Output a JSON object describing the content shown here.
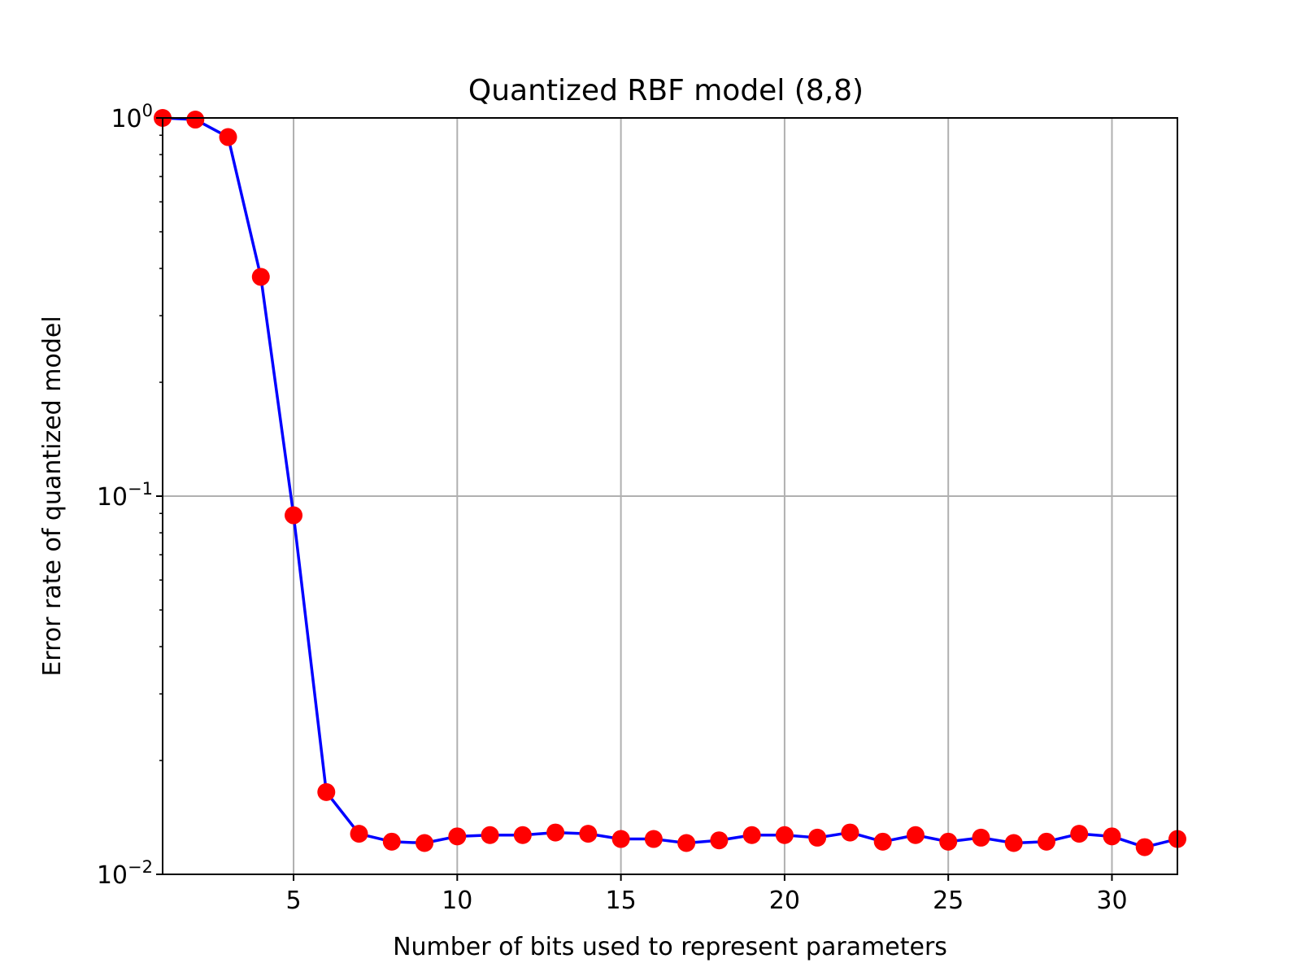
{
  "chart_data": {
    "type": "line",
    "title": "Quantized RBF model (8,8)",
    "xlabel": "Number of bits used to represent parameters",
    "ylabel": "Error rate of quantized model",
    "xlim": [
      1,
      32
    ],
    "ylim": [
      0.01,
      1
    ],
    "yscale": "log",
    "grid": true,
    "x_ticks": [
      5,
      10,
      15,
      20,
      25,
      30
    ],
    "y_ticks": [
      {
        "value": 1,
        "base": "10",
        "exp": "0"
      },
      {
        "value": 0.1,
        "base": "10",
        "exp": "−1"
      },
      {
        "value": 0.01,
        "base": "10",
        "exp": "−2"
      }
    ],
    "line_color": "#0000ff",
    "marker_color": "#ff0000",
    "series": [
      {
        "x": [
          1,
          2,
          3,
          4,
          5,
          6,
          7,
          8,
          9,
          10,
          11,
          12,
          13,
          14,
          15,
          16,
          17,
          18,
          19,
          20,
          21,
          22,
          23,
          24,
          25,
          26,
          27,
          28,
          29,
          30,
          31,
          32
        ],
        "y": [
          1.0,
          0.99,
          0.89,
          0.38,
          0.089,
          0.0165,
          0.0128,
          0.0122,
          0.0121,
          0.0126,
          0.0127,
          0.0127,
          0.0129,
          0.0128,
          0.0124,
          0.0124,
          0.0121,
          0.0123,
          0.0127,
          0.0127,
          0.0125,
          0.0129,
          0.0122,
          0.0127,
          0.0122,
          0.0125,
          0.0121,
          0.0122,
          0.0128,
          0.0126,
          0.0118,
          0.0124
        ]
      }
    ]
  }
}
